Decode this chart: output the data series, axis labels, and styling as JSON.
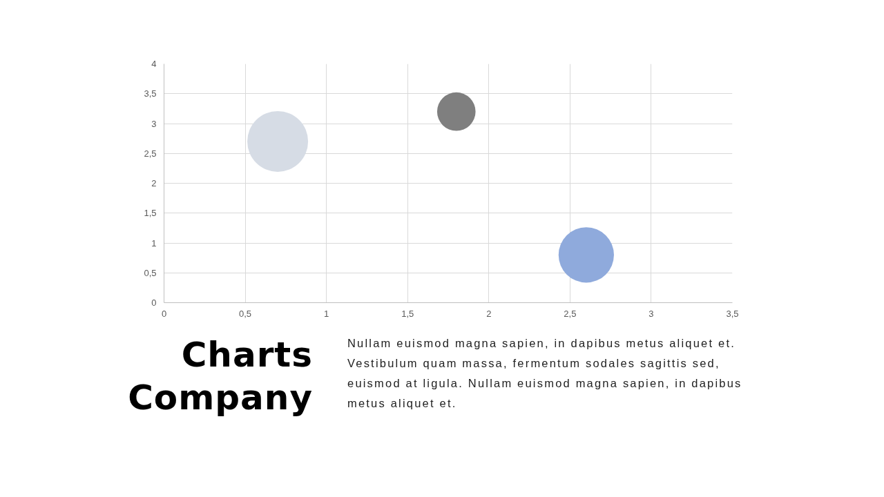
{
  "chart_data": {
    "type": "bubble",
    "title": "Charts Company",
    "x": [
      0.7,
      1.8,
      2.6
    ],
    "values": [
      2.7,
      3.2,
      0.8
    ],
    "sizes": [
      1,
      0.4,
      0.83
    ],
    "colors": [
      "#d6dce5",
      "#7f7f7f",
      "#8faadc"
    ],
    "xlim": [
      0,
      3.5
    ],
    "xticks": [
      0,
      {
        "value": 0.5,
        "label": "0,5"
      },
      1,
      {
        "value": 1.5,
        "label": "1,5"
      },
      2,
      {
        "value": 2.5,
        "label": "2,5"
      },
      3,
      {
        "value": 3.5,
        "label": "3,5"
      }
    ],
    "ylim": [
      0,
      4
    ],
    "yticks": [
      0,
      {
        "value": 0.5,
        "label": "0,5"
      },
      1,
      {
        "value": 1.5,
        "label": "1,5"
      },
      2,
      {
        "value": 2.5,
        "label": "2,5"
      },
      3,
      {
        "value": 3.5,
        "label": "3,5"
      },
      4
    ],
    "grid": true,
    "annotations": [
      "Nullam euismod magna sapien, in dapibus metus aliquet et. Vestibulum quam massa, fermentum sodales sagittis sed, euismod at ligula. Nullam euismod magna sapien, in dapibus metus aliquet et."
    ]
  }
}
